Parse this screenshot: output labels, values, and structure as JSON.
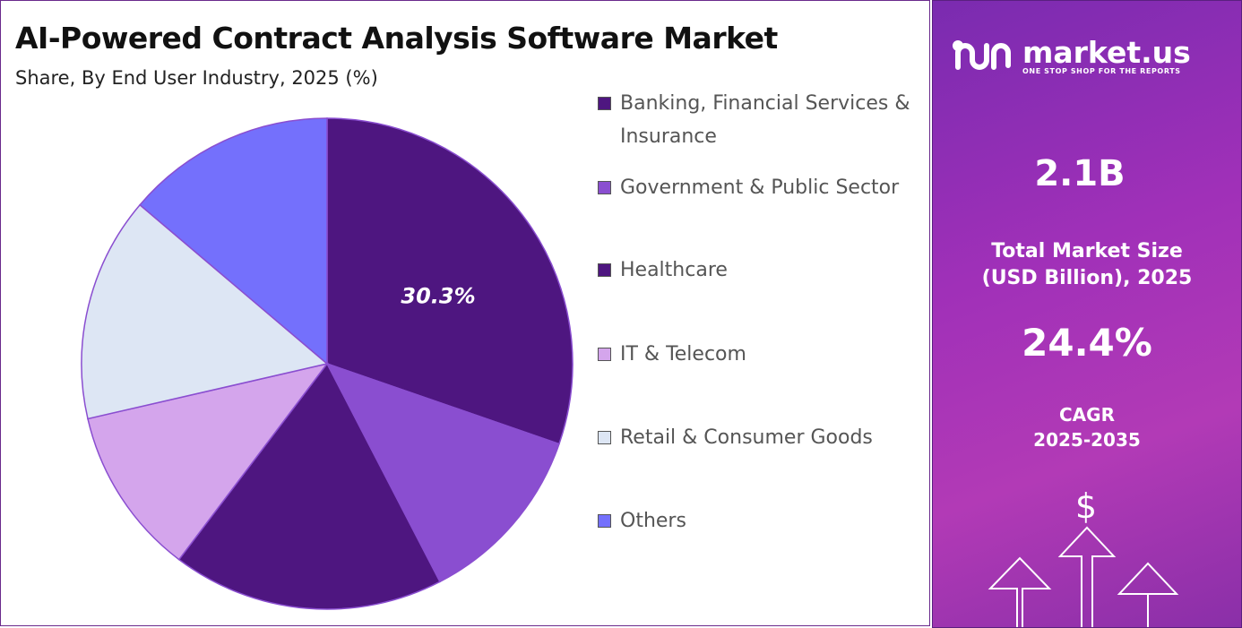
{
  "chart_data": {
    "type": "pie",
    "title": "AI-Powered Contract Analysis Software Market",
    "subtitle": "Share, By End User Industry, 2025 (%)",
    "categories": [
      "Banking, Financial Services & Insurance",
      "Government & Public Sector",
      "Healthcare",
      "IT & Telecom",
      "Retail & Consumer Goods",
      "Others"
    ],
    "values": [
      30.3,
      12.1,
      17.9,
      11.1,
      14.8,
      13.8
    ],
    "value_labels": [
      "30.3%",
      null,
      null,
      null,
      null,
      null
    ],
    "colors": [
      "#4e1680",
      "#8a4ed0",
      "#4e1680",
      "#d4a5ec",
      "#dde6f4",
      "#7470fc"
    ],
    "legend": "right"
  },
  "side_panel": {
    "brand": "market.us",
    "tagline": "ONE STOP SHOP FOR THE REPORTS",
    "market_size": "2.1B",
    "market_size_label": "Total Market Size (USD Billion), 2025",
    "cagr": "24.4%",
    "cagr_label": "CAGR",
    "cagr_period": "2025-2035"
  }
}
